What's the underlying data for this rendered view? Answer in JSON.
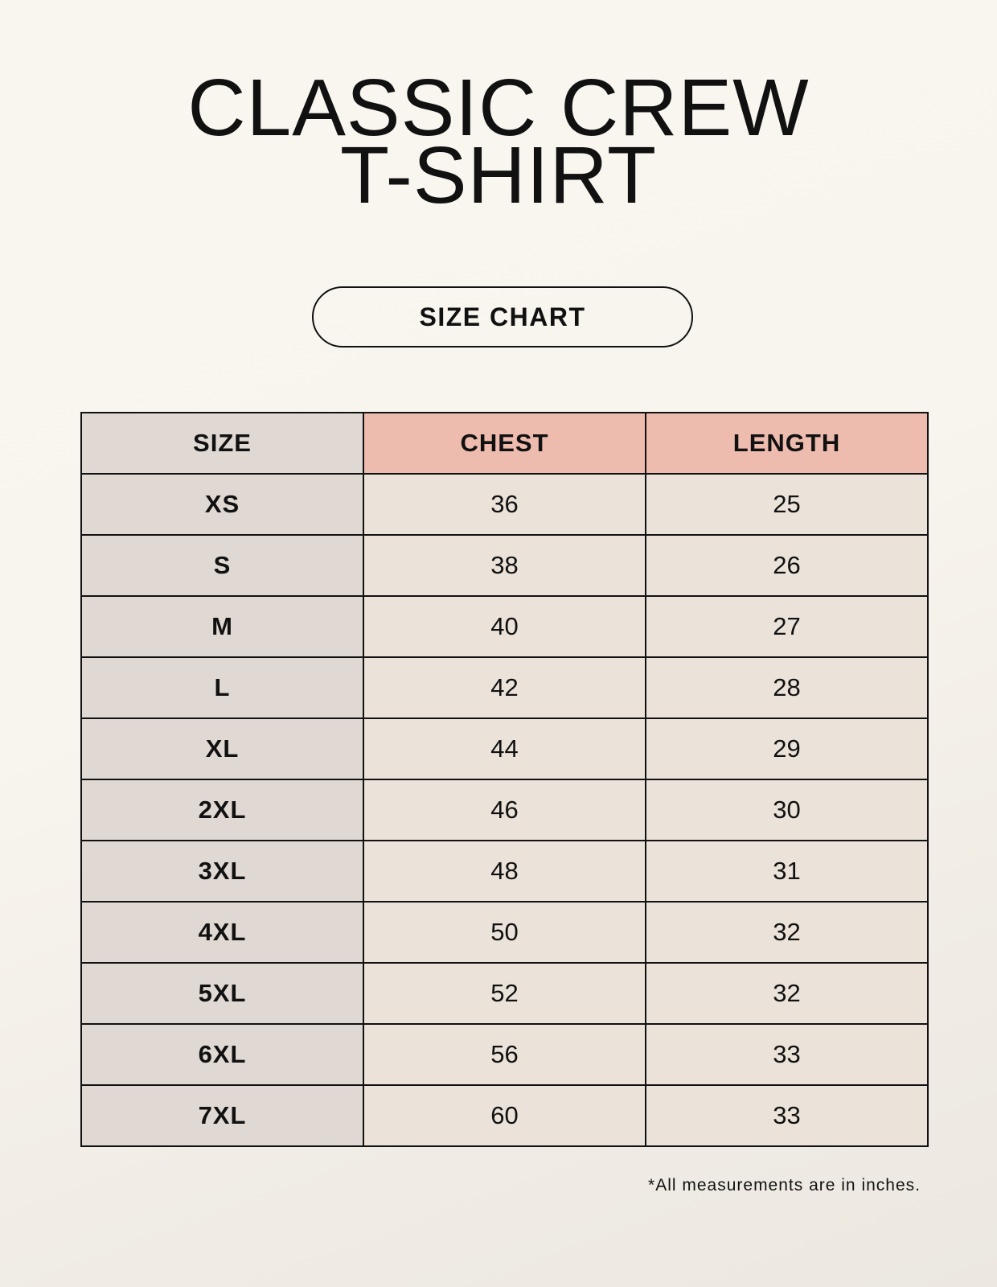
{
  "title": {
    "line1": "CLASSIC CREW",
    "line2": "T-SHIRT"
  },
  "badge": "SIZE CHART",
  "table": {
    "headers": [
      "SIZE",
      "CHEST",
      "LENGTH"
    ],
    "rows": [
      [
        "XS",
        "36",
        "25"
      ],
      [
        "S",
        "38",
        "26"
      ],
      [
        "M",
        "40",
        "27"
      ],
      [
        "L",
        "42",
        "28"
      ],
      [
        "XL",
        "44",
        "29"
      ],
      [
        "2XL",
        "46",
        "30"
      ],
      [
        "3XL",
        "48",
        "31"
      ],
      [
        "4XL",
        "50",
        "32"
      ],
      [
        "5XL",
        "52",
        "32"
      ],
      [
        "6XL",
        "56",
        "33"
      ],
      [
        "7XL",
        "60",
        "33"
      ]
    ]
  },
  "footnote": "*All measurements are in inches.",
  "colors": {
    "header_accent": "#edbcae",
    "size_column": "#e0d9d3",
    "value_cells": "#ebe3d9"
  }
}
